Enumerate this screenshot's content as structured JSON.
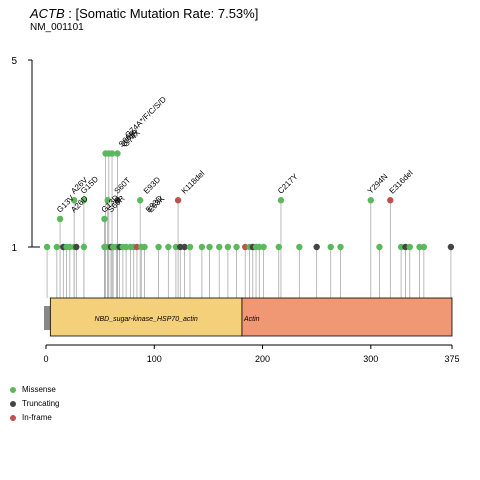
{
  "header": {
    "gene": "ACTB",
    "rate_text": " : [Somatic Mutation Rate: 7.53%]",
    "transcript": "NM_001101"
  },
  "colors": {
    "missense": "#5cb85c",
    "truncating": "#444444",
    "inframe": "#c0504d",
    "domain_nbd": "#f5d07a",
    "domain_actin": "#ef9873",
    "backbone": "#888888"
  },
  "legend": [
    {
      "label": "Missense",
      "color": "#5cb85c"
    },
    {
      "label": "Truncating",
      "color": "#444444"
    },
    {
      "label": "In-frame",
      "color": "#c0504d"
    }
  ],
  "chart_data": {
    "type": "scatter",
    "title": "ACTB : [Somatic Mutation Rate: 7.53%]",
    "xlim": [
      0,
      375
    ],
    "x_ticks": [
      0,
      100,
      200,
      300,
      375
    ],
    "y_ticks": [
      1,
      5
    ],
    "domains": [
      {
        "name": "NBD_sugar-kinase_HSP70_actin",
        "start": 4,
        "end": 181
      },
      {
        "name": "Actin",
        "start": 181,
        "end": 375
      }
    ],
    "labeled_mutations": [
      {
        "label": "G13V",
        "pos": 13,
        "count": 1.6
      },
      {
        "label": "A26V",
        "pos": 26,
        "count": 2.0
      },
      {
        "label": "A26D",
        "pos": 26,
        "count": 1.6
      },
      {
        "label": "G15D",
        "pos": 35,
        "count": 2.0
      },
      {
        "label": "G13D",
        "pos": 54,
        "count": 1.6
      },
      {
        "label": "S60R",
        "pos": 60,
        "count": 1.6
      },
      {
        "label": "S60T",
        "pos": 66,
        "count": 2.0
      },
      {
        "label": "S60R",
        "pos": 70,
        "count": 3.0
      },
      {
        "label": "G74R",
        "pos": 72,
        "count": 3.0
      },
      {
        "label": "G74X",
        "pos": 74,
        "count": 3.0
      },
      {
        "label": "G74A*/F/C/S/D",
        "pos": 76,
        "count": 3.2
      },
      {
        "label": "E93D",
        "pos": 93,
        "count": 2.0
      },
      {
        "label": "E93D",
        "pos": 95,
        "count": 1.6
      },
      {
        "label": "E93K",
        "pos": 97,
        "count": 1.6
      },
      {
        "label": "K118del",
        "pos": 128,
        "count": 2.0
      },
      {
        "label": "C217Y",
        "pos": 217,
        "count": 2.0
      },
      {
        "label": "Y294N",
        "pos": 300,
        "count": 2.0
      },
      {
        "label": "E316del",
        "pos": 320,
        "count": 2.0
      }
    ],
    "mutations": [
      {
        "pos": 1,
        "count": 1,
        "type": "missense"
      },
      {
        "pos": 10,
        "count": 1,
        "type": "missense"
      },
      {
        "pos": 16,
        "count": 1,
        "type": "truncating"
      },
      {
        "pos": 19,
        "count": 1,
        "type": "missense"
      },
      {
        "pos": 22,
        "count": 1,
        "type": "missense"
      },
      {
        "pos": 26,
        "count": 1,
        "type": "missense"
      },
      {
        "pos": 28,
        "count": 1,
        "type": "truncating"
      },
      {
        "pos": 35,
        "count": 1,
        "type": "missense"
      },
      {
        "pos": 54,
        "count": 1,
        "type": "missense"
      },
      {
        "pos": 57,
        "count": 1,
        "type": "missense"
      },
      {
        "pos": 60,
        "count": 1,
        "type": "truncating"
      },
      {
        "pos": 62,
        "count": 1,
        "type": "missense"
      },
      {
        "pos": 65,
        "count": 1,
        "type": "missense"
      },
      {
        "pos": 68,
        "count": 1,
        "type": "truncating"
      },
      {
        "pos": 71,
        "count": 1,
        "type": "missense"
      },
      {
        "pos": 74,
        "count": 1,
        "type": "missense"
      },
      {
        "pos": 78,
        "count": 1,
        "type": "missense"
      },
      {
        "pos": 81,
        "count": 1,
        "type": "missense"
      },
      {
        "pos": 84,
        "count": 1,
        "type": "inframe"
      },
      {
        "pos": 88,
        "count": 1,
        "type": "missense"
      },
      {
        "pos": 91,
        "count": 1,
        "type": "missense"
      },
      {
        "pos": 104,
        "count": 1,
        "type": "missense"
      },
      {
        "pos": 113,
        "count": 1,
        "type": "missense"
      },
      {
        "pos": 120,
        "count": 1,
        "type": "missense"
      },
      {
        "pos": 124,
        "count": 1,
        "type": "truncating"
      },
      {
        "pos": 128,
        "count": 1,
        "type": "truncating"
      },
      {
        "pos": 133,
        "count": 1,
        "type": "missense"
      },
      {
        "pos": 144,
        "count": 1,
        "type": "missense"
      },
      {
        "pos": 151,
        "count": 1,
        "type": "missense"
      },
      {
        "pos": 160,
        "count": 1,
        "type": "missense"
      },
      {
        "pos": 168,
        "count": 1,
        "type": "missense"
      },
      {
        "pos": 176,
        "count": 1,
        "type": "missense"
      },
      {
        "pos": 184,
        "count": 1,
        "type": "inframe"
      },
      {
        "pos": 188,
        "count": 1,
        "type": "missense"
      },
      {
        "pos": 191,
        "count": 1,
        "type": "truncating"
      },
      {
        "pos": 194,
        "count": 1,
        "type": "missense"
      },
      {
        "pos": 197,
        "count": 1,
        "type": "missense"
      },
      {
        "pos": 201,
        "count": 1,
        "type": "missense"
      },
      {
        "pos": 215,
        "count": 1,
        "type": "missense"
      },
      {
        "pos": 234,
        "count": 1,
        "type": "missense"
      },
      {
        "pos": 250,
        "count": 1,
        "type": "truncating"
      },
      {
        "pos": 263,
        "count": 1,
        "type": "missense"
      },
      {
        "pos": 272,
        "count": 1,
        "type": "missense"
      },
      {
        "pos": 308,
        "count": 1,
        "type": "missense"
      },
      {
        "pos": 328,
        "count": 1,
        "type": "missense"
      },
      {
        "pos": 332,
        "count": 1,
        "type": "truncating"
      },
      {
        "pos": 336,
        "count": 1,
        "type": "missense"
      },
      {
        "pos": 345,
        "count": 1,
        "type": "missense"
      },
      {
        "pos": 349,
        "count": 1,
        "type": "missense"
      },
      {
        "pos": 374,
        "count": 1,
        "type": "truncating"
      },
      {
        "pos": 13,
        "count": 1.6,
        "type": "missense"
      },
      {
        "pos": 54,
        "count": 1.6,
        "type": "missense"
      },
      {
        "pos": 26,
        "count": 2.0,
        "type": "missense"
      },
      {
        "pos": 35,
        "count": 2.0,
        "type": "missense"
      },
      {
        "pos": 57,
        "count": 2.0,
        "type": "missense"
      },
      {
        "pos": 66,
        "count": 2.0,
        "type": "truncating"
      },
      {
        "pos": 87,
        "count": 2.0,
        "type": "missense"
      },
      {
        "pos": 122,
        "count": 2.0,
        "type": "inframe"
      },
      {
        "pos": 217,
        "count": 2.0,
        "type": "missense"
      },
      {
        "pos": 300,
        "count": 2.0,
        "type": "missense"
      },
      {
        "pos": 318,
        "count": 2.0,
        "type": "inframe"
      },
      {
        "pos": 55,
        "count": 3.0,
        "type": "missense"
      },
      {
        "pos": 58,
        "count": 3.0,
        "type": "missense"
      },
      {
        "pos": 61,
        "count": 3.0,
        "type": "missense"
      },
      {
        "pos": 66,
        "count": 3.0,
        "type": "missense"
      }
    ]
  }
}
